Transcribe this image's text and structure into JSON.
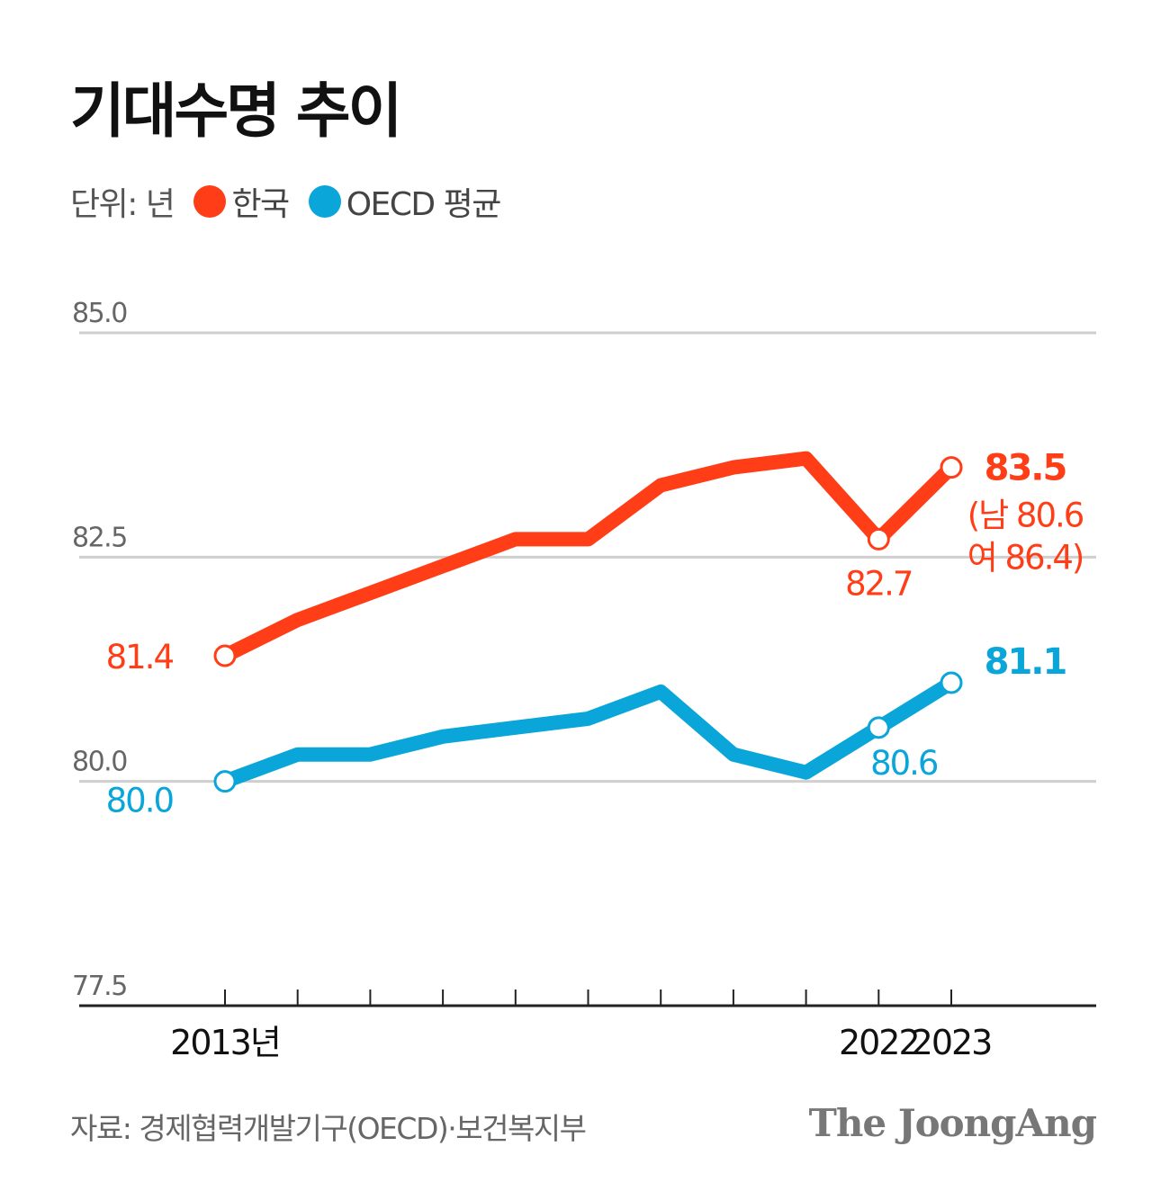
{
  "title": "기대수명 추이",
  "legend": {
    "unit_label": "단위: 년",
    "korea_label": "한국",
    "oecd_label": "OECD 평균"
  },
  "colors": {
    "korea": "#ff3d17",
    "oecd": "#0aa6d9",
    "grid": "#cfcfcf",
    "axis": "#222222"
  },
  "source": "자료: 경제협력개발기구(OECD)·보건복지부",
  "brand": "The JoongAng",
  "chart_data": {
    "type": "line",
    "title": "기대수명 추이",
    "ylabel": "단위: 년",
    "xlabel": "",
    "ylim": [
      77.5,
      85.0
    ],
    "yticks": [
      77.5,
      80.0,
      82.5,
      85.0
    ],
    "ytick_labels": [
      "77.5",
      "80.0",
      "82.5",
      "85.0"
    ],
    "x": [
      2013,
      2014,
      2015,
      2016,
      2017,
      2018,
      2019,
      2020,
      2021,
      2022,
      2023
    ],
    "xtick_labels": [
      "2013년",
      "",
      "",
      "",
      "",
      "",
      "",
      "",
      "",
      "2022",
      "2023"
    ],
    "series": [
      {
        "name": "한국",
        "key": "korea",
        "values": [
          81.4,
          81.8,
          82.1,
          82.4,
          82.7,
          82.7,
          83.3,
          83.5,
          83.6,
          82.7,
          83.5
        ]
      },
      {
        "name": "OECD 평균",
        "key": "oecd",
        "values": [
          80.0,
          80.3,
          80.3,
          80.5,
          80.6,
          80.7,
          81.0,
          80.3,
          80.1,
          80.6,
          81.1
        ]
      }
    ],
    "annotations": [
      {
        "series": "korea",
        "index": 0,
        "text": "81.4",
        "bold": false
      },
      {
        "series": "korea",
        "index": 9,
        "text": "82.7",
        "bold": false
      },
      {
        "series": "korea",
        "index": 10,
        "text": "83.5",
        "bold": true
      },
      {
        "series": "korea",
        "index": 10,
        "text": "(남 80.6",
        "bold": false
      },
      {
        "series": "korea",
        "index": 10,
        "text": "여 86.4)",
        "bold": false
      },
      {
        "series": "oecd",
        "index": 0,
        "text": "80.0",
        "bold": false
      },
      {
        "series": "oecd",
        "index": 9,
        "text": "80.6",
        "bold": false
      },
      {
        "series": "oecd",
        "index": 10,
        "text": "81.1",
        "bold": true
      }
    ],
    "markers": [
      {
        "series": "korea",
        "index": 0
      },
      {
        "series": "korea",
        "index": 9
      },
      {
        "series": "korea",
        "index": 10
      },
      {
        "series": "oecd",
        "index": 0
      },
      {
        "series": "oecd",
        "index": 9
      },
      {
        "series": "oecd",
        "index": 10
      }
    ]
  }
}
